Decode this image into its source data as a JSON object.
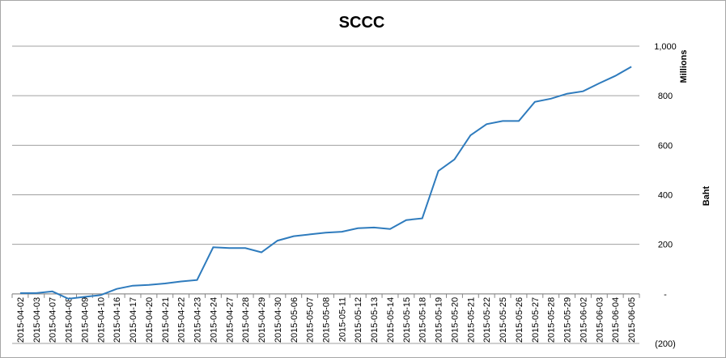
{
  "chart_data": {
    "type": "line",
    "title": "SCCC",
    "y_unit_label": "Millions",
    "y_axis_label": "Baht",
    "categories": [
      "2015-04-02",
      "2015-04-03",
      "2015-04-07",
      "2015-04-08",
      "2015-04-09",
      "2015-04-10",
      "2015-04-16",
      "2015-04-17",
      "2015-04-20",
      "2015-04-21",
      "2015-04-22",
      "2015-04-23",
      "2015-04-24",
      "2015-04-27",
      "2015-04-28",
      "2015-04-29",
      "2015-04-30",
      "2015-05-06",
      "2015-05-07",
      "2015-05-08",
      "2015-05-11",
      "2015-05-12",
      "2015-05-13",
      "2015-05-14",
      "2015-05-15",
      "2015-05-18",
      "2015-05-19",
      "2015-05-20",
      "2015-05-21",
      "2015-05-22",
      "2015-05-25",
      "2015-05-26",
      "2015-05-27",
      "2015-05-28",
      "2015-05-29",
      "2015-06-02",
      "2015-06-03",
      "2015-06-04",
      "2015-06-05"
    ],
    "series": [
      {
        "color": "#2e7bbd",
        "values": [
          3,
          3,
          10,
          -20,
          -12,
          -5,
          20,
          33,
          36,
          42,
          50,
          56,
          188,
          185,
          185,
          168,
          215,
          233,
          240,
          247,
          251,
          265,
          268,
          262,
          298,
          305,
          496,
          543,
          640,
          685,
          698,
          698,
          775,
          788,
          808,
          818,
          850,
          880,
          917
        ]
      }
    ],
    "ylim": [
      -200,
      1000
    ],
    "yticks": [
      {
        "value": -200,
        "label": "(200)"
      },
      {
        "value": 0,
        "label": "-"
      },
      200,
      400,
      600,
      800,
      {
        "value": 1000,
        "label": "1,000"
      }
    ],
    "grid": true
  }
}
